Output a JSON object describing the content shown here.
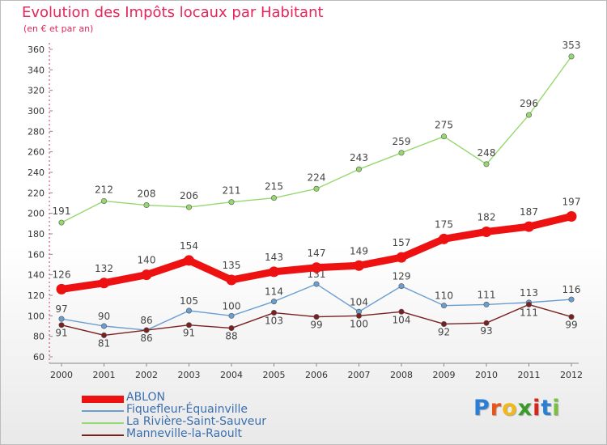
{
  "title": "Evolution des Impôts locaux par Habitant",
  "subtitle": "(en € et par an)",
  "logo_text": "Proxiti",
  "chart_data": {
    "type": "line",
    "title": "Evolution des Impôts locaux par Habitant",
    "subtitle": "(en € et par an)",
    "x": [
      "2000",
      "2001",
      "2002",
      "2003",
      "2004",
      "2005",
      "2006",
      "2007",
      "2008",
      "2009",
      "2010",
      "2011",
      "2012"
    ],
    "ylim": [
      60,
      360
    ],
    "yticks": [
      60,
      80,
      100,
      120,
      140,
      160,
      180,
      200,
      220,
      240,
      260,
      280,
      300,
      320,
      340,
      360
    ],
    "grid": false,
    "legend_position": "bottom-left",
    "series": [
      {
        "name": "ABLON",
        "color": "#ee1111",
        "values": [
          126,
          132,
          140,
          154,
          135,
          143,
          147,
          149,
          157,
          175,
          182,
          187,
          197
        ]
      },
      {
        "name": "Fiquefleur-Équainville",
        "color": "#6a9ed0",
        "values": [
          97,
          90,
          86,
          105,
          100,
          114,
          131,
          104,
          129,
          110,
          111,
          113,
          116
        ]
      },
      {
        "name": "La Rivière-Saint-Sauveur",
        "color": "#96d870",
        "values": [
          191,
          212,
          208,
          206,
          211,
          215,
          224,
          243,
          259,
          275,
          248,
          296,
          353
        ]
      },
      {
        "name": "Manneville-la-Raoult",
        "color": "#7a2020",
        "values": [
          91,
          81,
          86,
          91,
          88,
          103,
          99,
          100,
          104,
          92,
          93,
          111,
          99
        ]
      }
    ]
  }
}
